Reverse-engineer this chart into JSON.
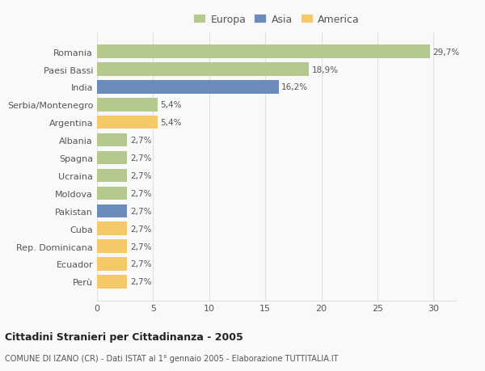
{
  "categories": [
    "Romania",
    "Paesi Bassi",
    "India",
    "Serbia/Montenegro",
    "Argentina",
    "Albania",
    "Spagna",
    "Ucraina",
    "Moldova",
    "Pakistan",
    "Cuba",
    "Rep. Dominicana",
    "Ecuador",
    "Perù"
  ],
  "values": [
    29.7,
    18.9,
    16.2,
    5.4,
    5.4,
    2.7,
    2.7,
    2.7,
    2.7,
    2.7,
    2.7,
    2.7,
    2.7,
    2.7
  ],
  "colors": [
    "#b5c98e",
    "#b5c98e",
    "#6b8cba",
    "#b5c98e",
    "#f5c96a",
    "#b5c98e",
    "#b5c98e",
    "#b5c98e",
    "#b5c98e",
    "#6b8cba",
    "#f5c96a",
    "#f5c96a",
    "#f5c96a",
    "#f5c96a"
  ],
  "labels": [
    "29,7%",
    "18,9%",
    "16,2%",
    "5,4%",
    "5,4%",
    "2,7%",
    "2,7%",
    "2,7%",
    "2,7%",
    "2,7%",
    "2,7%",
    "2,7%",
    "2,7%",
    "2,7%"
  ],
  "legend": [
    {
      "label": "Europa",
      "color": "#b5c98e"
    },
    {
      "label": "Asia",
      "color": "#6b8cba"
    },
    {
      "label": "America",
      "color": "#f5c96a"
    }
  ],
  "title": "Cittadini Stranieri per Cittadinanza - 2005",
  "subtitle": "COMUNE DI IZANO (CR) - Dati ISTAT al 1° gennaio 2005 - Elaborazione TUTTITALIA.IT",
  "xlim": [
    0,
    32
  ],
  "xticks": [
    0,
    5,
    10,
    15,
    20,
    25,
    30
  ],
  "background_color": "#f9f9f9",
  "grid_color": "#e0e0e0"
}
